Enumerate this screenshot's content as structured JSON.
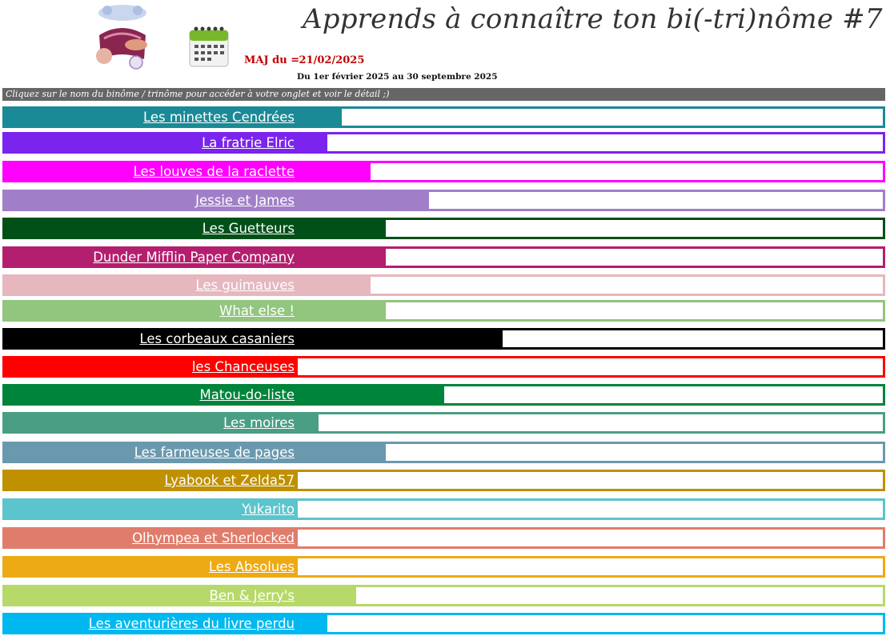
{
  "header": {
    "title": "Apprends à connaître ton bi(-tri)nôme #7",
    "maj_label": "MAJ du =",
    "maj_date": "21/02/2025",
    "period": "Du 1er février 2025 au 30 septembre 2025",
    "instruction": "Cliquez sur le nom du binôme / trinôme pour accéder à votre onglet et voir le détail ;)",
    "logo_icon": "reading-logo-icon",
    "calendar_icon": "calendar-icon"
  },
  "chart_data": {
    "type": "bar",
    "orientation": "horizontal",
    "xlim": [
      0,
      100
    ],
    "grid": false,
    "categories": [
      "Les minettes Cendrées",
      "La fratrie Elric",
      "Les louves de la raclette",
      "Jessie et James",
      "Les Guetteurs",
      "Dunder Mifflin Paper Company",
      "Les guimauves",
      "What else !",
      "Les corbeaux casaniers",
      "les Chanceuses",
      "Matou-do-liste",
      "Les moires",
      "Les farmeuses de pages",
      "Lyabook et Zelda57",
      "Yukarito",
      "Olhympea et Sherlocked",
      "Les Absolues",
      "Ben & Jerry's",
      "Les aventurières du livre perdu"
    ],
    "values": [
      7.5,
      5,
      12.5,
      22.5,
      15,
      15,
      12.5,
      15,
      35,
      0,
      25,
      3.5,
      15,
      0,
      0,
      0,
      0,
      10,
      5
    ],
    "colors": [
      "#1a8a96",
      "#7b24ee",
      "#ff00ff",
      "#a07fc8",
      "#005018",
      "#b41e6e",
      "#e6b7be",
      "#92c57e",
      "#000000",
      "#ff0000",
      "#00843c",
      "#4a9e84",
      "#6a99ae",
      "#bf9000",
      "#5bc4cc",
      "#e07c6c",
      "#eeaa14",
      "#b6d96a",
      "#00b8f0"
    ]
  }
}
